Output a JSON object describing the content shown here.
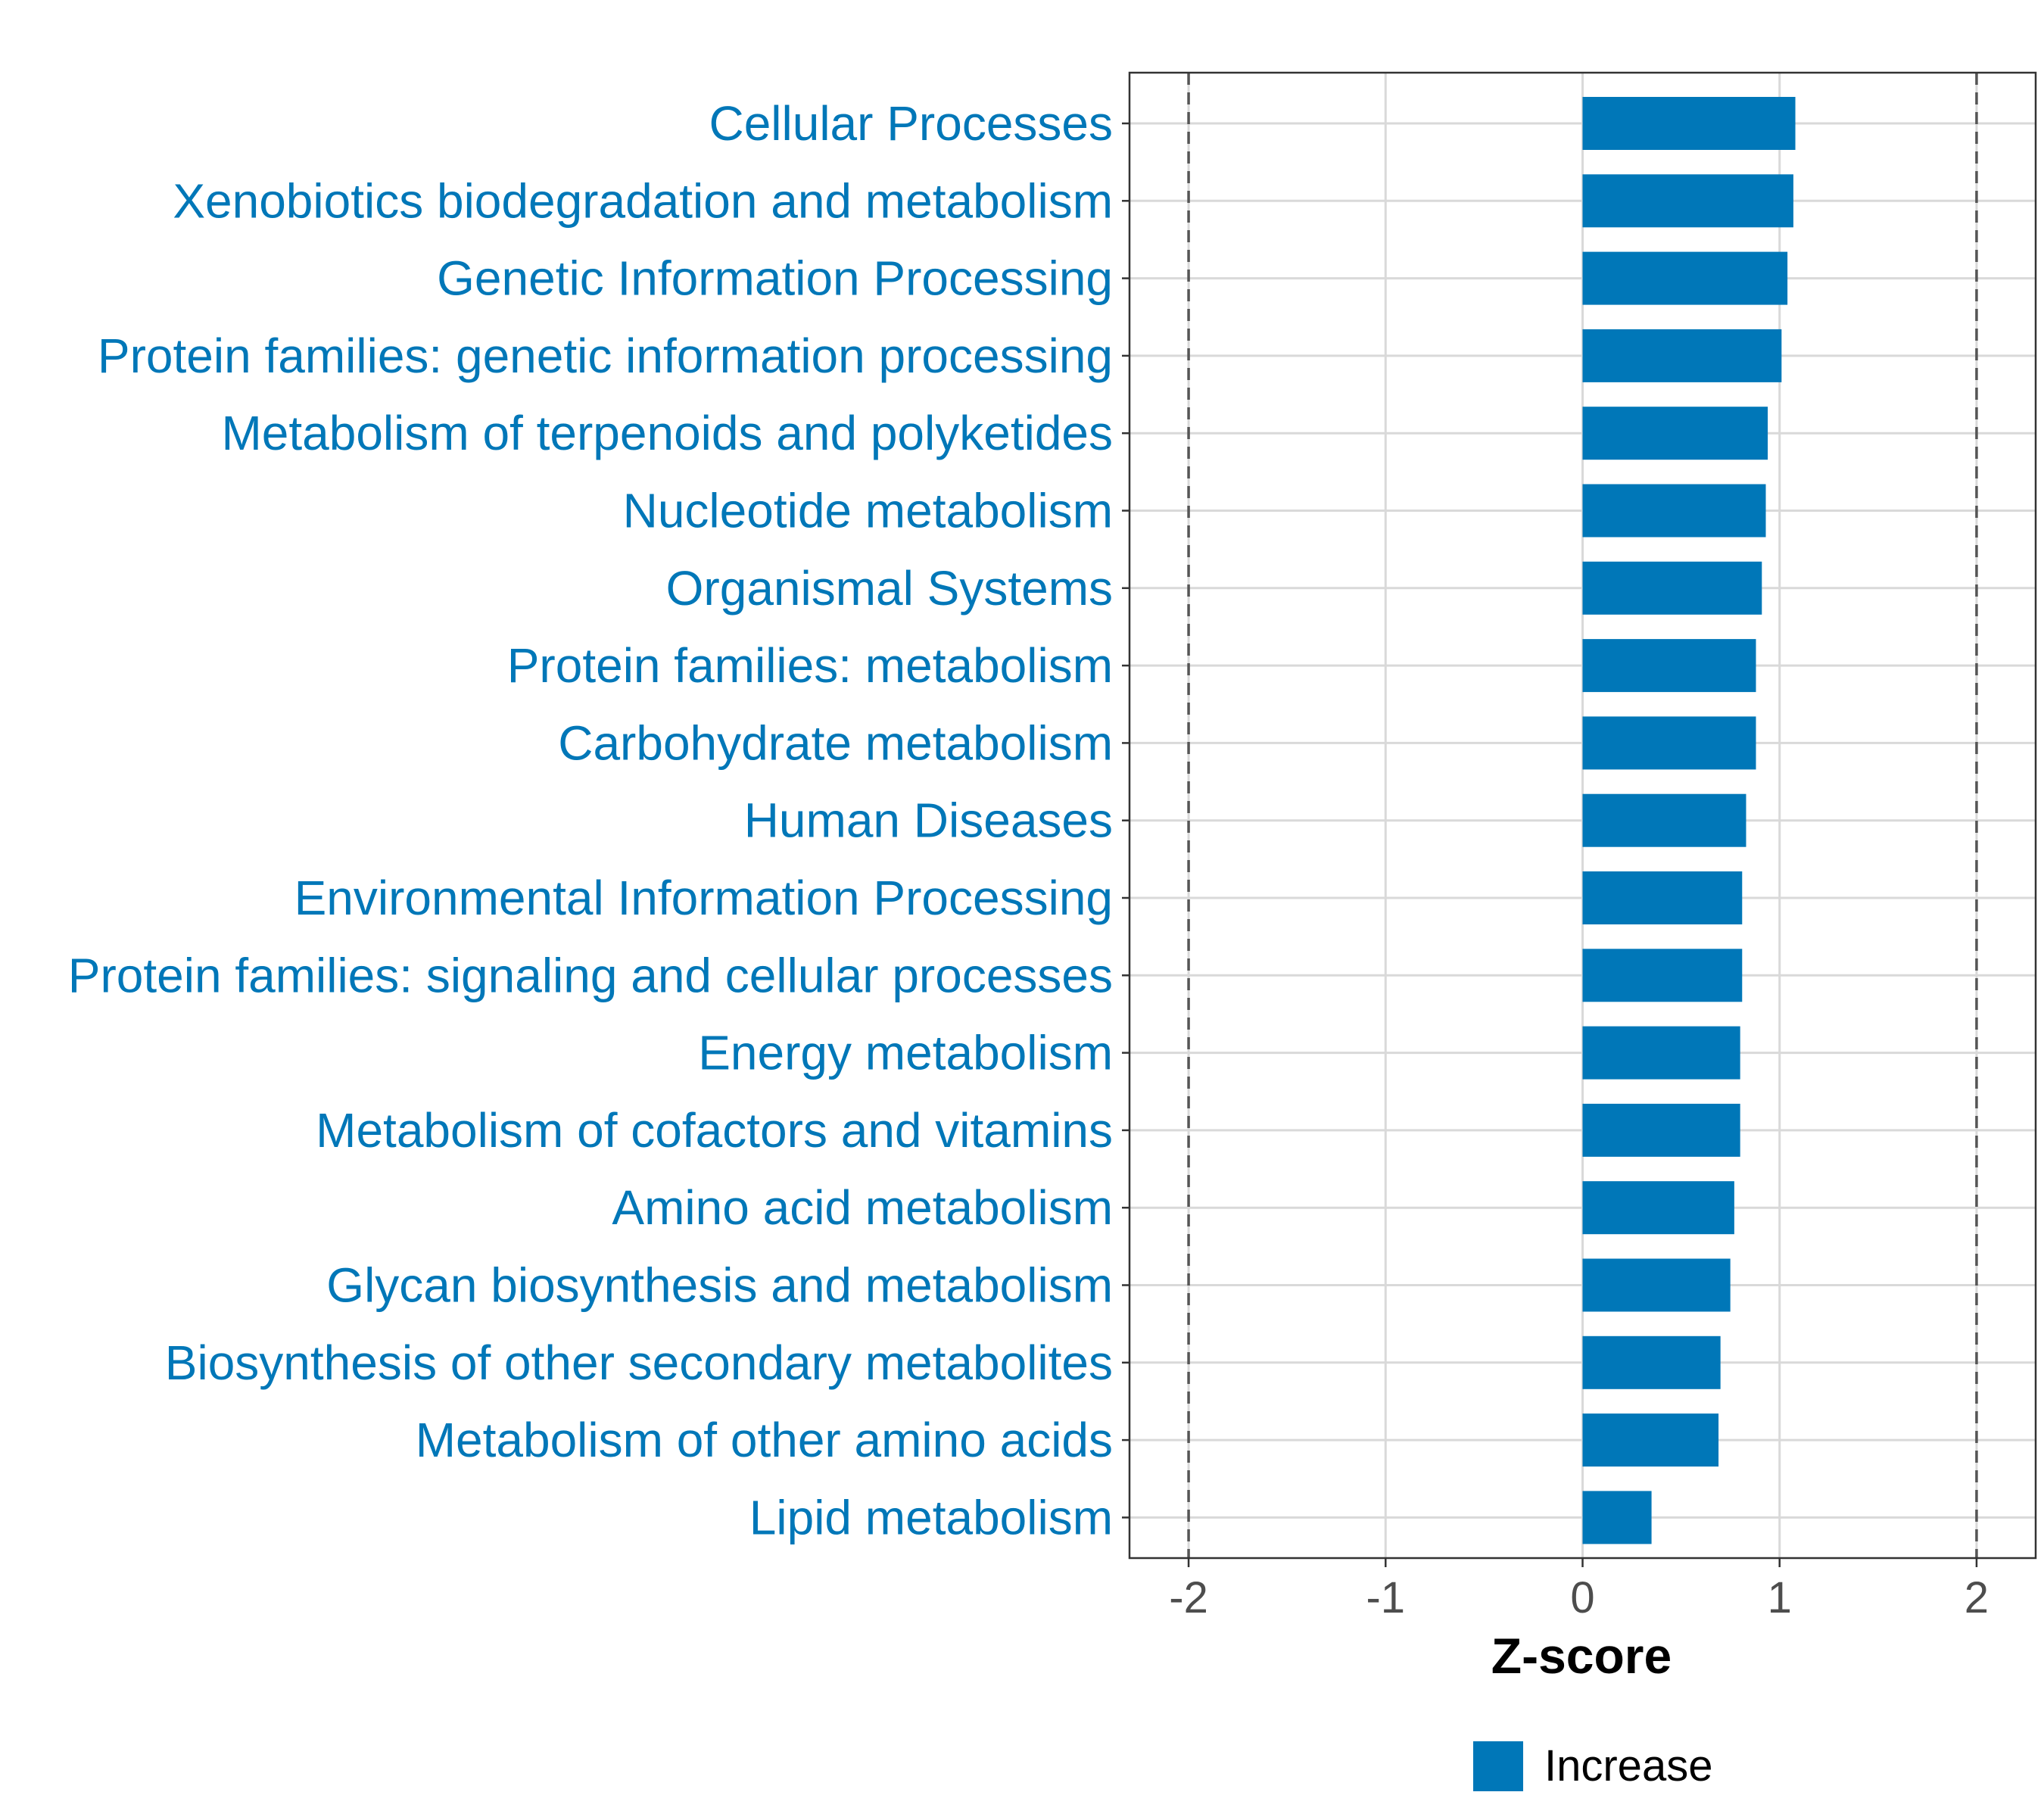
{
  "colors": {
    "bar": "#0077b8",
    "label": "#0077b8",
    "grid": "#d9d9d9",
    "threshold": "#555555",
    "panel_border": "#333333",
    "tick_text": "#4d4d4d"
  },
  "chart_data": {
    "type": "bar",
    "orientation": "horizontal",
    "title": "",
    "xlabel": "Z-score",
    "ylabel": "",
    "xlim": [
      -2.3,
      2.3
    ],
    "x_ticks": [
      -2,
      -1,
      0,
      1,
      2
    ],
    "x_tick_labels": [
      "-2",
      "-1",
      "0",
      "1",
      "2"
    ],
    "threshold_lines": [
      -2,
      2
    ],
    "grid": true,
    "legend_position": "bottom",
    "categories": [
      "Cellular Processes",
      "Xenobiotics biodegradation and metabolism",
      "Genetic Information Processing",
      "Protein families: genetic information processing",
      "Metabolism of terpenoids and polyketides",
      "Nucleotide metabolism",
      "Organismal Systems",
      "Protein families: metabolism",
      "Carbohydrate metabolism",
      "Human Diseases",
      "Environmental Information Processing",
      "Protein families: signaling and cellular processes",
      "Energy metabolism",
      "Metabolism of cofactors and vitamins",
      "Amino acid metabolism",
      "Glycan biosynthesis and metabolism",
      "Biosynthesis of other secondary metabolites",
      "Metabolism of other amino acids",
      "Lipid metabolism"
    ],
    "series": [
      {
        "name": "Increase",
        "color": "#0077b8",
        "values": [
          1.08,
          1.07,
          1.04,
          1.01,
          0.94,
          0.93,
          0.91,
          0.88,
          0.88,
          0.83,
          0.81,
          0.81,
          0.8,
          0.8,
          0.77,
          0.75,
          0.7,
          0.69,
          0.35
        ]
      }
    ]
  }
}
